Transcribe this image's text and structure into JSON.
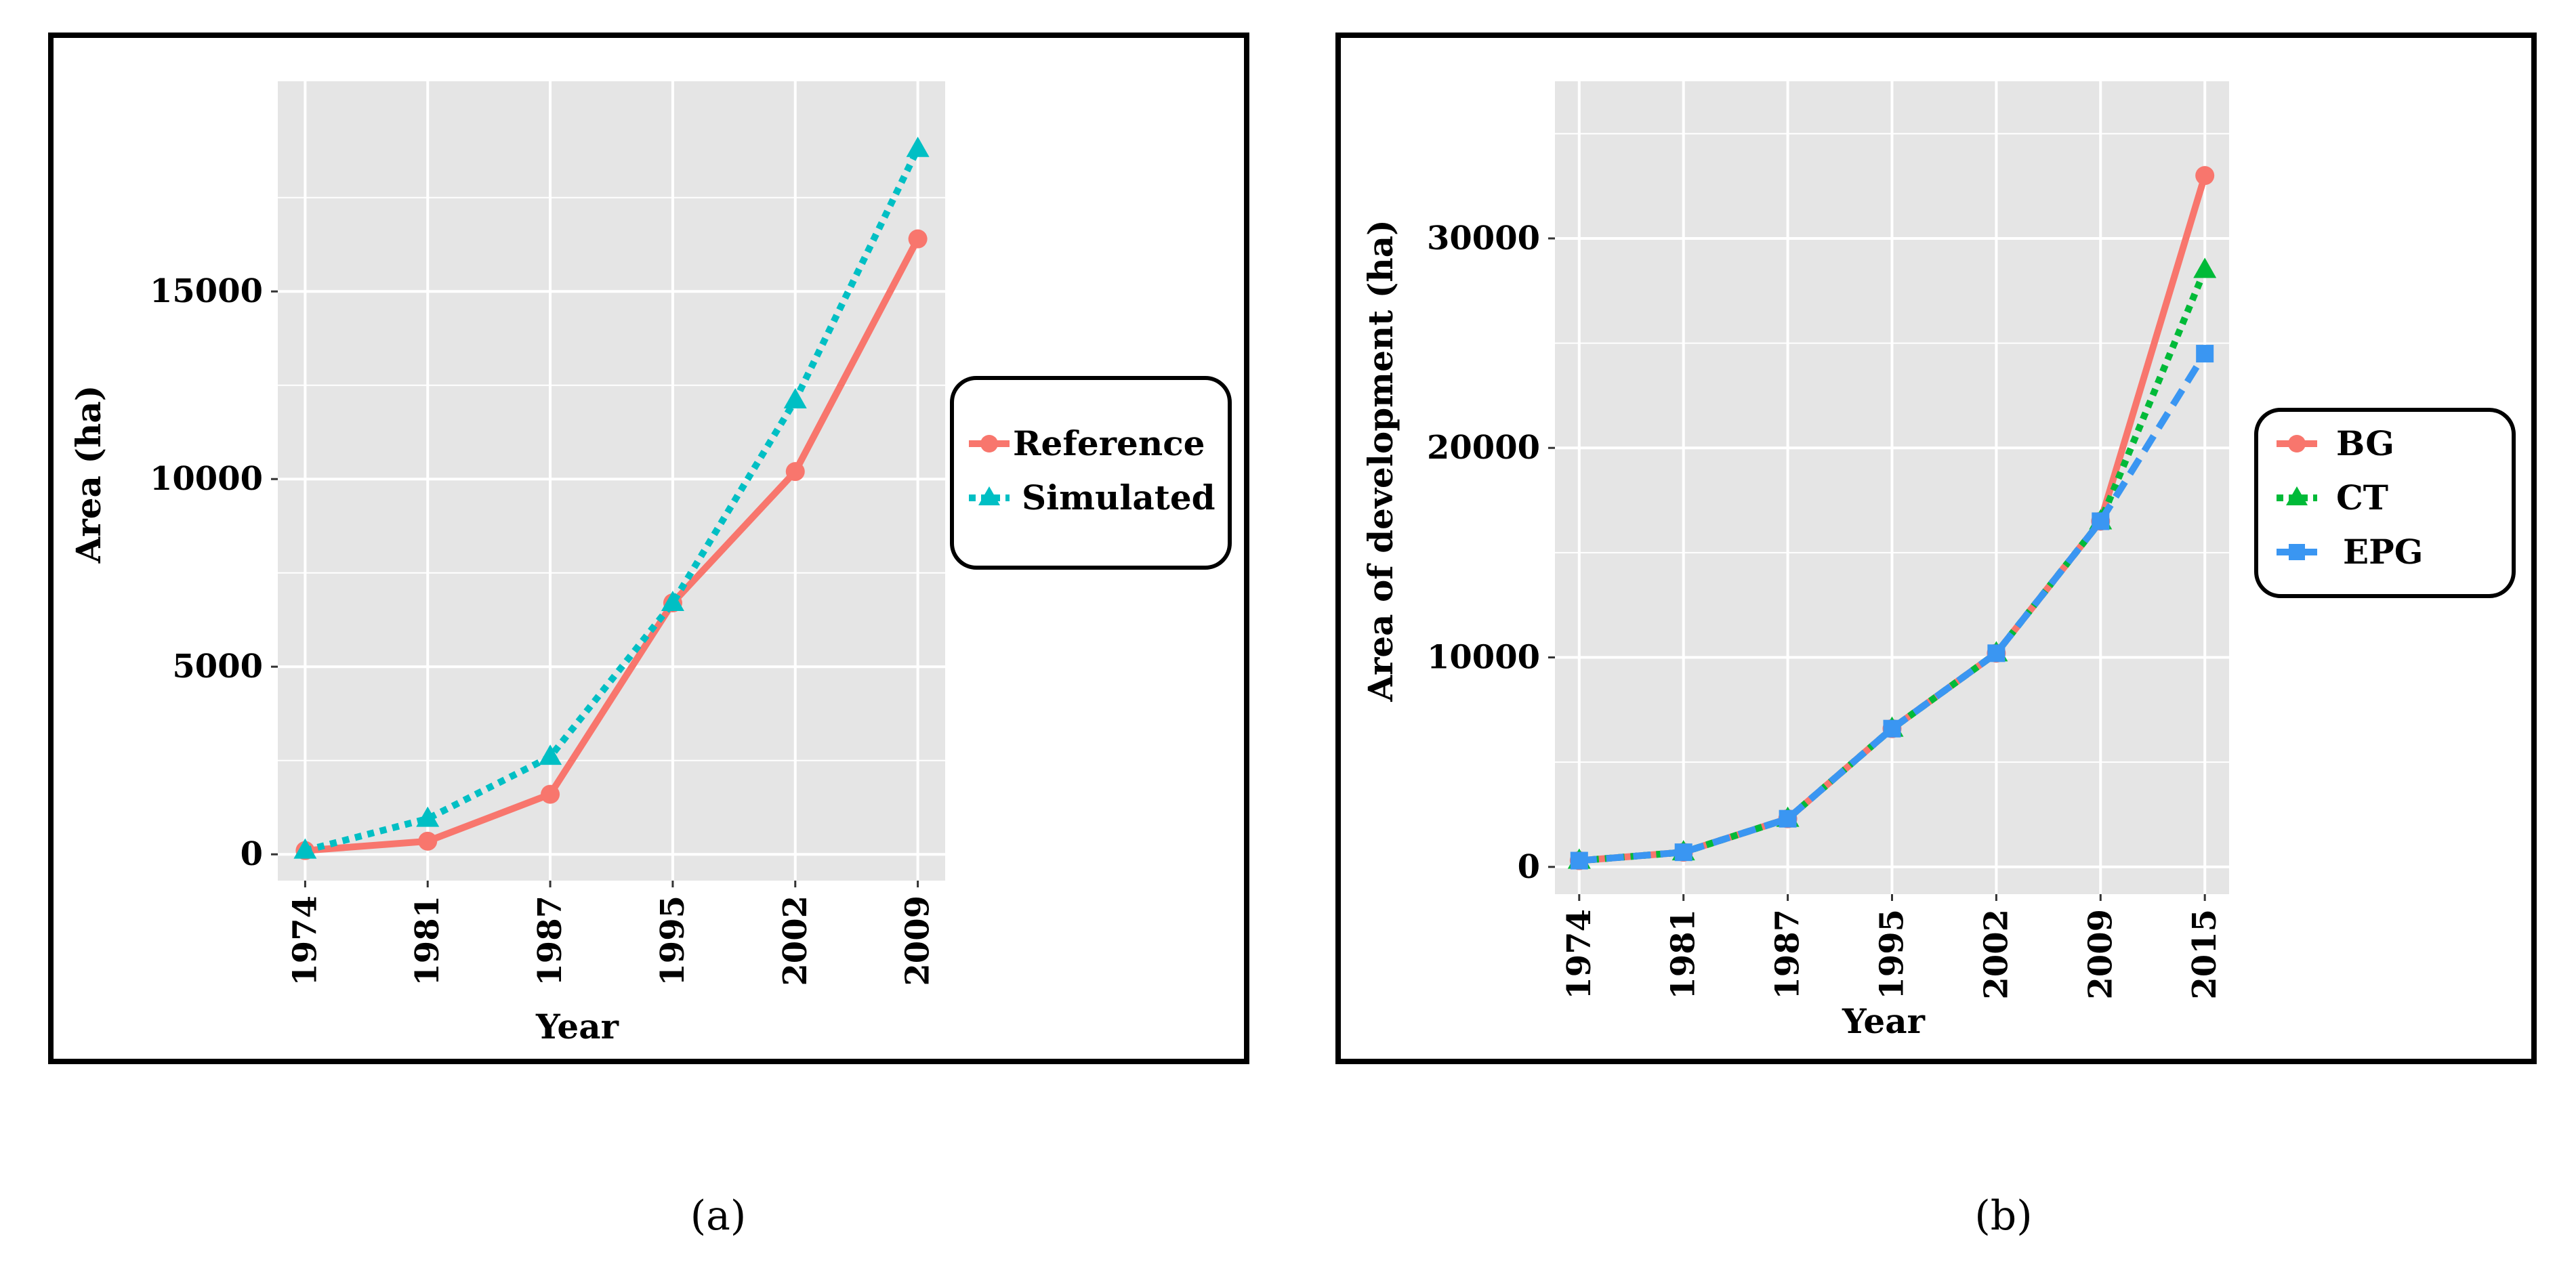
{
  "colors": {
    "reference": "#F8766D",
    "simulated": "#00BFC4",
    "bg": "#F8766D",
    "ct": "#00BA38",
    "epg": "#3A96F2",
    "panel": "#E5E5E5",
    "grid": "#FFFFFF"
  },
  "chart_data": [
    {
      "type": "line",
      "caption": "(a)",
      "xlabel": "Year",
      "ylabel": "Area (ha)",
      "categories": [
        "1974",
        "1981",
        "1987",
        "1995",
        "2002",
        "2009"
      ],
      "yticks": [
        "0",
        "5000",
        "10000",
        "15000"
      ],
      "ylim": [
        -700,
        20600
      ],
      "series": [
        {
          "name": "Reference",
          "marker": "circle",
          "dash": "solid",
          "colorKey": "reference",
          "values": [
            100,
            350,
            1600,
            6700,
            10200,
            16400
          ]
        },
        {
          "name": "Simulated",
          "marker": "triangle",
          "dash": "dotted",
          "colorKey": "simulated",
          "values": [
            100,
            950,
            2600,
            6700,
            12100,
            18800
          ]
        }
      ],
      "legend": "right"
    },
    {
      "type": "line",
      "caption": "(b)",
      "xlabel": "Year",
      "ylabel": "Area of development (ha)",
      "categories": [
        "1974",
        "1981",
        "1987",
        "1995",
        "2002",
        "2009",
        "2015"
      ],
      "yticks": [
        "0",
        "10000",
        "20000",
        "30000"
      ],
      "ylim": [
        -1300,
        37500
      ],
      "series": [
        {
          "name": "BG",
          "marker": "circle",
          "dash": "solid",
          "colorKey": "bg",
          "values": [
            300,
            700,
            2300,
            6600,
            10200,
            16500,
            33000
          ]
        },
        {
          "name": "CT",
          "marker": "triangle",
          "dash": "dotted",
          "colorKey": "ct",
          "values": [
            300,
            700,
            2300,
            6600,
            10200,
            16500,
            28500
          ]
        },
        {
          "name": "EPG",
          "marker": "square",
          "dash": "dashed",
          "colorKey": "epg",
          "values": [
            300,
            700,
            2300,
            6600,
            10200,
            16500,
            24500
          ]
        }
      ],
      "legend": "right"
    }
  ]
}
